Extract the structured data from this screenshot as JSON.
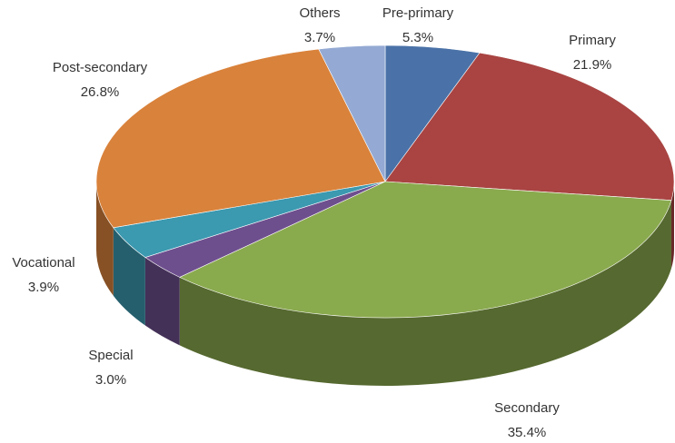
{
  "chart_data": {
    "type": "pie3d",
    "categories": [
      "Pre-primary",
      "Primary",
      "Secondary",
      "Special",
      "Vocational",
      "Post-secondary",
      "Others"
    ],
    "values": [
      5.3,
      21.9,
      35.4,
      3.0,
      3.9,
      26.8,
      3.7
    ],
    "value_labels": [
      "5.3%",
      "21.9%",
      "35.4%",
      "3.0%",
      "3.9%",
      "26.8%",
      "3.7%"
    ],
    "colors": [
      "#4a72a8",
      "#a94442",
      "#8aaa4e",
      "#6e4f8e",
      "#3b99b0",
      "#d9823b",
      "#94aad4"
    ]
  }
}
